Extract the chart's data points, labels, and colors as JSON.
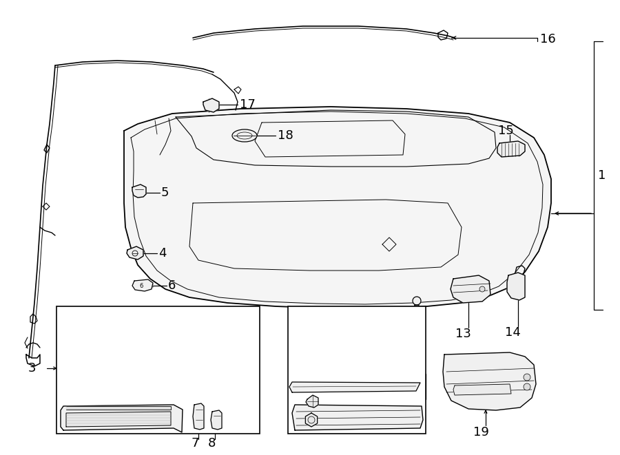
{
  "bg_color": "#ffffff",
  "line_color": "#000000",
  "fig_width": 9.0,
  "fig_height": 6.61,
  "dpi": 100,
  "lw_main": 1.0,
  "lw_thin": 0.6,
  "lw_thick": 1.4,
  "label_fontsize": 13
}
